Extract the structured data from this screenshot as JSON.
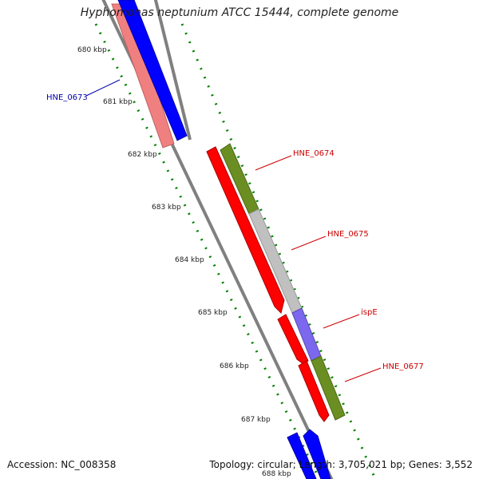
{
  "title": "Hyphomonas neptunium ATCC 15444, complete genome",
  "accession_text": "Accession: NC_008358",
  "summary_text": "Topology: circular; Length: 3,705,021 bp; Genes: 3,552",
  "colors": {
    "backbone": "#808080",
    "tick_dot": "#008000",
    "forward_cds": "#0000ff",
    "forward_cds_light": "#f08080",
    "reverse_cds": "#ff0000",
    "olive": "#6b8e23",
    "silver": "#c0c0c0",
    "slate": "#7b68ee",
    "label_blue": "#0000aa",
    "label_red": "#cc0000"
  },
  "ticks": [
    {
      "label": "680 kbp"
    },
    {
      "label": "681 kbp"
    },
    {
      "label": "682 kbp"
    },
    {
      "label": "683 kbp"
    },
    {
      "label": "684 kbp"
    },
    {
      "label": "685 kbp"
    },
    {
      "label": "686 kbp"
    },
    {
      "label": "687 kbp"
    },
    {
      "label": "688 kbp"
    }
  ],
  "gene_labels": [
    {
      "name": "HNE_0673",
      "color": "label_blue"
    },
    {
      "name": "HNE_0674",
      "color": "label_red"
    },
    {
      "name": "HNE_0675",
      "color": "label_red"
    },
    {
      "name": "ispE",
      "color": "label_red"
    },
    {
      "name": "HNE_0677",
      "color": "label_red"
    }
  ]
}
